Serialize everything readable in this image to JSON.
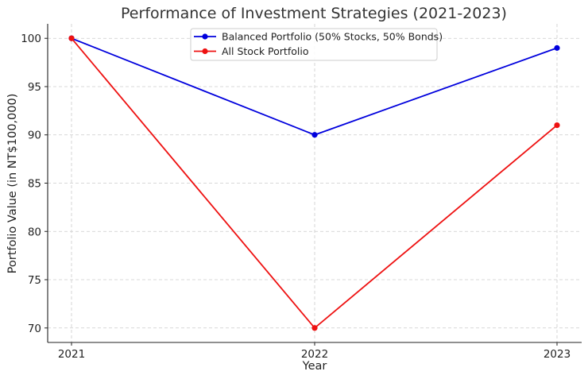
{
  "chart_data": {
    "type": "line",
    "title": "Performance of Investment Strategies (2021-2023)",
    "xlabel": "Year",
    "ylabel": "Portfolio Value (in NT$100,000)",
    "x": [
      "2021",
      "2022",
      "2023"
    ],
    "ylim": [
      68.5,
      101.5
    ],
    "yticks": [
      70,
      75,
      80,
      85,
      90,
      95,
      100
    ],
    "ytick_labels": [
      "70",
      "75",
      "80",
      "85",
      "90",
      "95",
      "100"
    ],
    "grid": true,
    "legend_position": "top-center",
    "series": [
      {
        "name": "Balanced Portfolio (50% Stocks, 50% Bonds)",
        "color": "#0000dd",
        "values": [
          100,
          90,
          99
        ]
      },
      {
        "name": "All Stock Portfolio",
        "color": "#ee1111",
        "values": [
          100,
          70,
          91
        ]
      }
    ]
  }
}
